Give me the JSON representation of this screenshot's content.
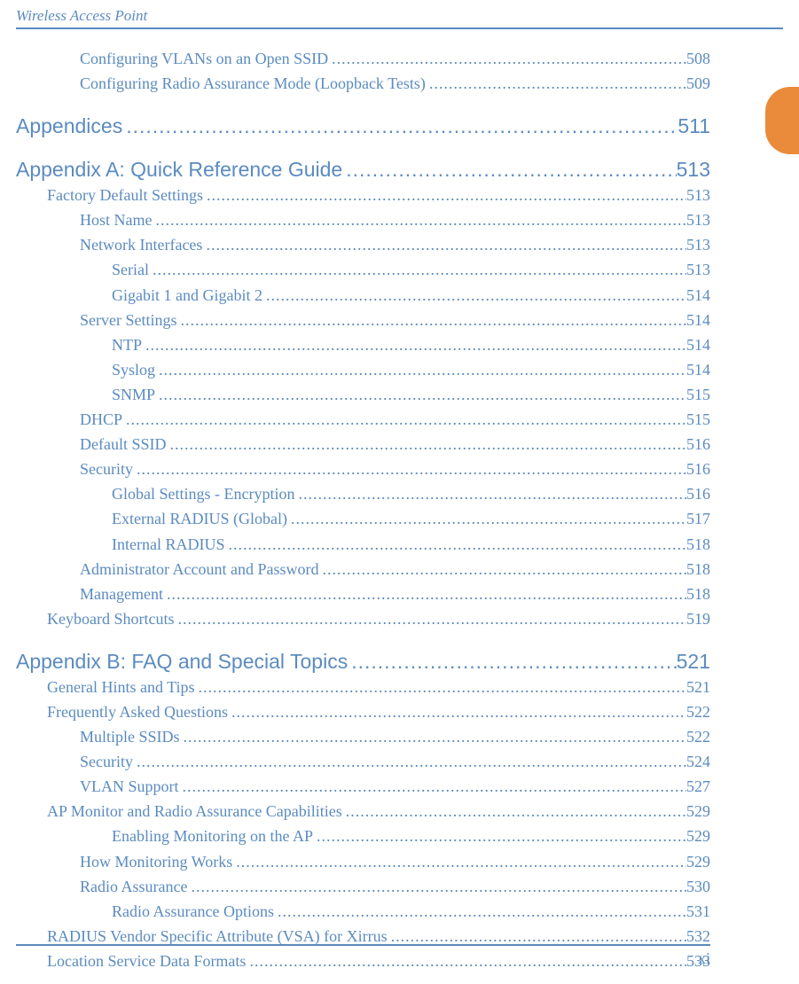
{
  "header": {
    "title": "Wireless Access Point"
  },
  "lines": [
    {
      "cls": "lvl2",
      "text": "Configuring VLANs on an Open SSID",
      "page": "508"
    },
    {
      "cls": "lvl2",
      "text": "Configuring Radio Assurance Mode (Loopback Tests)",
      "page": "509"
    },
    {
      "cls": "chapter",
      "text": "Appendices",
      "page": " 511"
    },
    {
      "cls": "chapter",
      "text": "Appendix A: Quick Reference Guide ",
      "page": "513"
    },
    {
      "cls": "lvl1",
      "text": "Factory Default Settings",
      "page": "513"
    },
    {
      "cls": "lvl2",
      "text": "Host Name",
      "page": "513"
    },
    {
      "cls": "lvl2",
      "text": "Network Interfaces",
      "page": "513"
    },
    {
      "cls": "lvl3",
      "text": "Serial",
      "page": "513"
    },
    {
      "cls": "lvl3",
      "text": "Gigabit 1 and Gigabit 2",
      "page": "514"
    },
    {
      "cls": "lvl2",
      "text": "Server Settings",
      "page": "514"
    },
    {
      "cls": "lvl3",
      "text": "NTP",
      "page": "514"
    },
    {
      "cls": "lvl3",
      "text": "Syslog",
      "page": "514"
    },
    {
      "cls": "lvl3",
      "text": "SNMP",
      "page": "515"
    },
    {
      "cls": "lvl2",
      "text": "DHCP",
      "page": "515"
    },
    {
      "cls": "lvl2",
      "text": "Default SSID",
      "page": "516"
    },
    {
      "cls": "lvl2",
      "text": "Security",
      "page": "516"
    },
    {
      "cls": "lvl3",
      "text": "Global Settings - Encryption ",
      "page": "516"
    },
    {
      "cls": "lvl3",
      "text": "External RADIUS (Global) ",
      "page": "517"
    },
    {
      "cls": "lvl3",
      "text": "Internal RADIUS",
      "page": "518"
    },
    {
      "cls": "lvl2",
      "text": "Administrator Account and Password",
      "page": "518"
    },
    {
      "cls": "lvl2",
      "text": "Management",
      "page": "518"
    },
    {
      "cls": "lvl1",
      "text": "Keyboard Shortcuts",
      "page": "519"
    },
    {
      "cls": "chapter",
      "text": "Appendix B: FAQ and Special Topics ",
      "page": "521"
    },
    {
      "cls": "lvl1",
      "text": "General Hints and Tips",
      "page": "521"
    },
    {
      "cls": "lvl1",
      "text": "Frequently Asked Questions",
      "page": "522"
    },
    {
      "cls": "lvl2",
      "text": "Multiple SSIDs",
      "page": "522"
    },
    {
      "cls": "lvl2",
      "text": "Security",
      "page": "524"
    },
    {
      "cls": "lvl2",
      "text": "VLAN Support",
      "page": "527"
    },
    {
      "cls": "lvl1",
      "text": "AP Monitor and Radio Assurance Capabilities",
      "page": "529"
    },
    {
      "cls": "lvl3",
      "text": "Enabling Monitoring on the AP",
      "page": "529"
    },
    {
      "cls": "lvl2",
      "text": "How Monitoring Works",
      "page": "529"
    },
    {
      "cls": "lvl2",
      "text": "Radio Assurance",
      "page": "530"
    },
    {
      "cls": "lvl3",
      "text": "Radio Assurance Options",
      "page": "531"
    },
    {
      "cls": "lvl1",
      "text": "RADIUS Vendor Specific Attribute (VSA) for Xirrus",
      "page": "532"
    },
    {
      "cls": "lvl1",
      "text": "Location Service Data Formats",
      "page": "533"
    }
  ],
  "footer": {
    "page": "xi"
  },
  "colors": {
    "link": "#5b8bbf",
    "tab": "#e98b3a",
    "rule": "#5b8bbf",
    "background": "#ffffff"
  },
  "typography": {
    "body_font": "Palatino Linotype serif",
    "chapter_font": "Verdana sans-serif",
    "body_fontsize": 18,
    "chapter_fontsize": 23,
    "header_fontsize": 17
  }
}
